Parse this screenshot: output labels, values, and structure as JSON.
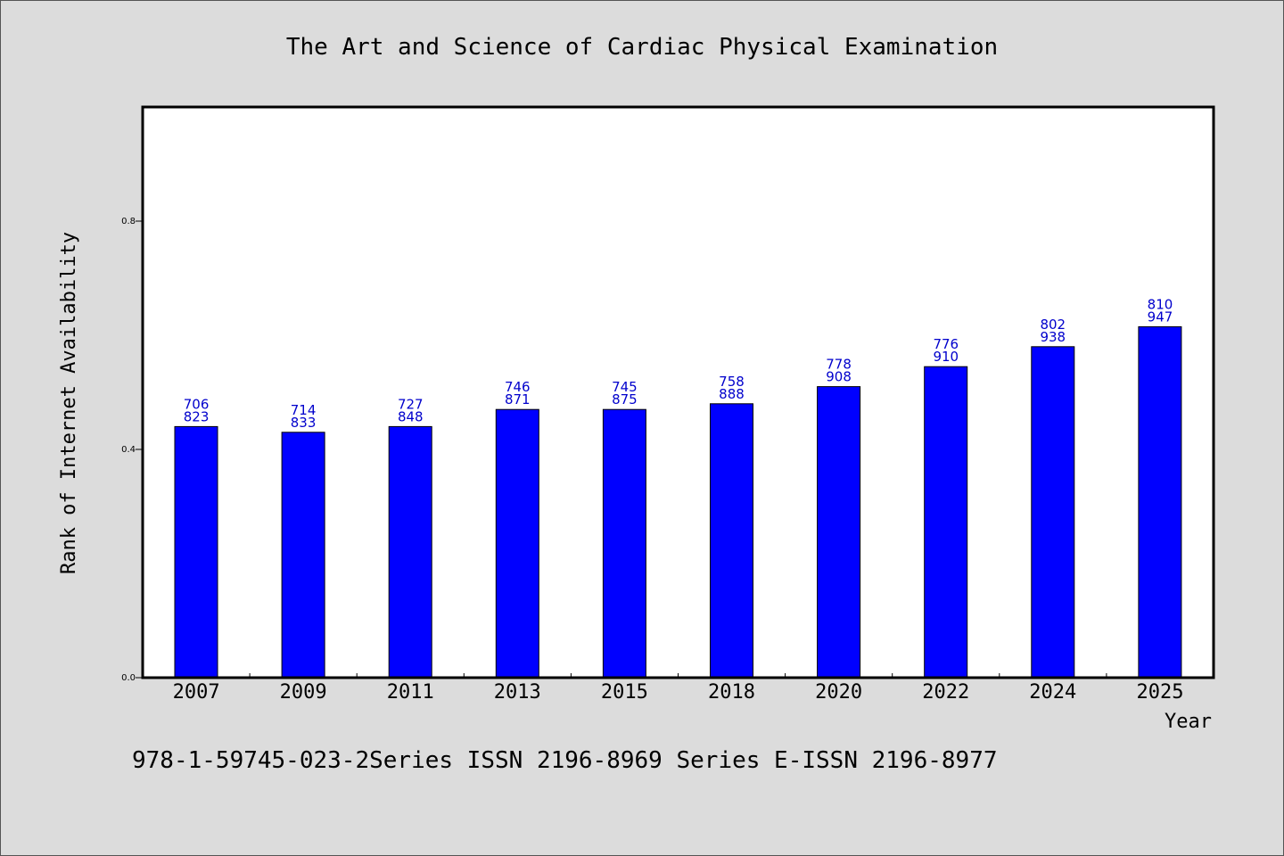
{
  "chart_data": {
    "type": "bar",
    "title": "The Art and Science of Cardiac Physical Examination",
    "xlabel": "Year",
    "ylabel": "Rank of Internet Availability",
    "categories": [
      "2007",
      "2009",
      "2011",
      "2013",
      "2015",
      "2018",
      "2020",
      "2022",
      "2024",
      "2025"
    ],
    "values": [
      0.44,
      0.43,
      0.44,
      0.47,
      0.47,
      0.48,
      0.51,
      0.545,
      0.58,
      0.615
    ],
    "labels_top": [
      "706",
      "714",
      "727",
      "746",
      "745",
      "758",
      "778",
      "776",
      "802",
      "810"
    ],
    "labels_bottom": [
      "823",
      "833",
      "848",
      "871",
      "875",
      "888",
      "908",
      "910",
      "938",
      "947"
    ],
    "ylim": [
      0,
      1.0
    ],
    "yticks": [
      0.0,
      0.4,
      0.8
    ],
    "ytick_labels": [
      "0.0",
      "0.4",
      "0.8"
    ],
    "grid": false,
    "bar_color": "#0000ff",
    "label_color": "#0000cc",
    "background": "#dcdcdc"
  },
  "footer": {
    "text": "978-1-59745-023-2Series ISSN 2196-8969 Series E-ISSN 2196-8977"
  }
}
